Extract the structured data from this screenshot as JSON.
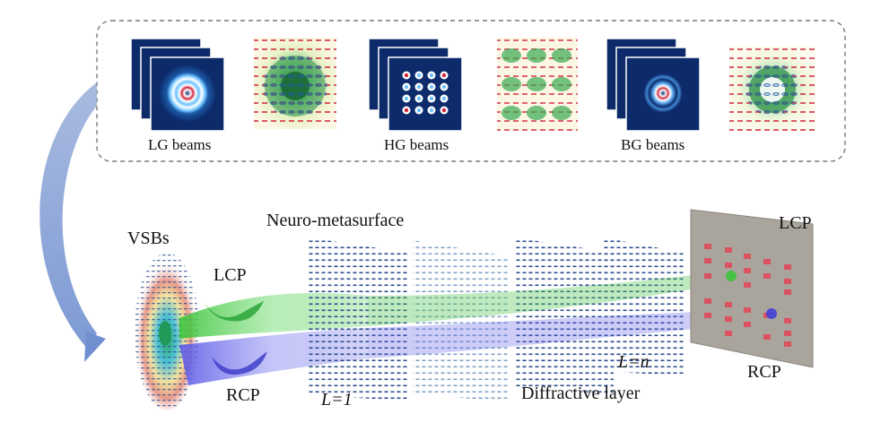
{
  "beam_types": [
    {
      "name": "LG beams"
    },
    {
      "name": "HG beams"
    },
    {
      "name": "BG beams"
    }
  ],
  "labels": {
    "source": "VSBs",
    "system": "Neuro-metasurface",
    "lcp_in": "LCP",
    "rcp_in": "RCP",
    "layer_first": "L=1",
    "layer_last": "L=n",
    "diffractive": "Diffractive layer",
    "lcp_out": "LCP",
    "rcp_out": "RCP"
  },
  "colors": {
    "frame_border": "#7a7a7a",
    "profile_bg": "#0d2b6b",
    "lcp_beam": "#3cc43c",
    "rcp_beam": "#5a5ae8",
    "arrow": "#8aa4d6",
    "detector_plate": "#a9a49c",
    "detector_spot": "#e0495a",
    "layer_dot": "#2b4c8c"
  }
}
